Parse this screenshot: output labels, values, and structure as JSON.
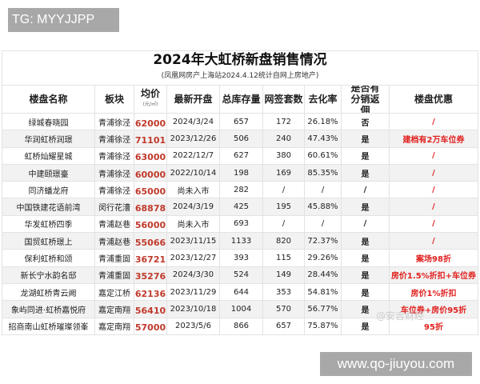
{
  "watermark": "TG: MYYJJPP",
  "site": "www.qo-jiuyou.com",
  "faint_watermark": "@安吉财经",
  "title": "2024年大虹桥新盘销售情况",
  "subtitle": "(凤凰网房产上海站2024.4.12统计自网上房地产)",
  "headers": [
    "楼盘名称",
    "板块",
    "均价",
    "最新开盘",
    "总库存量",
    "网签套数",
    "去化率",
    "是否有分销返佣",
    "楼盘优惠"
  ],
  "price_unit": "(元/㎡)",
  "colors": {
    "price": "#c0392b",
    "promo": "#e0201e"
  },
  "rows": [
    [
      "绿城春晓园",
      "青浦徐泾",
      "62000",
      "2024/3/24",
      "657",
      "172",
      "26.18%",
      "否",
      "/"
    ],
    [
      "华润虹桥润璟",
      "青浦徐泾",
      "71101",
      "2023/12/26",
      "506",
      "240",
      "47.43%",
      "是",
      "建档有2万车位券"
    ],
    [
      "虹桥灿耀星城",
      "青浦徐泾",
      "63000",
      "2022/12/7",
      "627",
      "380",
      "60.61%",
      "是",
      "/"
    ],
    [
      "中建颐璟臺",
      "青浦徐泾",
      "60000",
      "2022/10/14",
      "198",
      "169",
      "85.35%",
      "是",
      "/"
    ],
    [
      "同济蟠龙府",
      "青浦徐泾",
      "65000",
      "尚未入市",
      "282",
      "/",
      "/",
      "/",
      "/"
    ],
    [
      "中国铁建花语前湾",
      "闵行花漕",
      "68878",
      "2024/3/19",
      "425",
      "195",
      "45.88%",
      "是",
      "/"
    ],
    [
      "华发虹桥四季",
      "青浦赵巷",
      "56000",
      "尚未入市",
      "693",
      "/",
      "/",
      "/",
      "/"
    ],
    [
      "国贸虹桥璟上",
      "青浦赵巷",
      "55066",
      "2023/11/15",
      "1133",
      "820",
      "72.37%",
      "是",
      "/"
    ],
    [
      "保利虹桥和颂",
      "青浦重固",
      "36721",
      "2023/12/27",
      "393",
      "115",
      "29.26%",
      "是",
      "案场98折"
    ],
    [
      "新长宁水韵名邸",
      "青浦重固",
      "35276",
      "2024/3/30",
      "524",
      "149",
      "28.44%",
      "是",
      "房价1.5%折扣+车位券"
    ],
    [
      "龙湖虹桥青云阙",
      "嘉定江桥",
      "62136",
      "2023/11/29",
      "644",
      "353",
      "54.81%",
      "是",
      "房价1%折扣"
    ],
    [
      "象屿同进·虹桥嘉悦府",
      "嘉定南翔",
      "56410",
      "2023/10/18",
      "1004",
      "570",
      "56.77%",
      "是",
      "车位券+房价95折"
    ],
    [
      "招商南山虹桥璀璨领峯",
      "嘉定南翔",
      "57000",
      "2023/5/6",
      "866",
      "657",
      "75.87%",
      "是",
      "95折"
    ]
  ]
}
